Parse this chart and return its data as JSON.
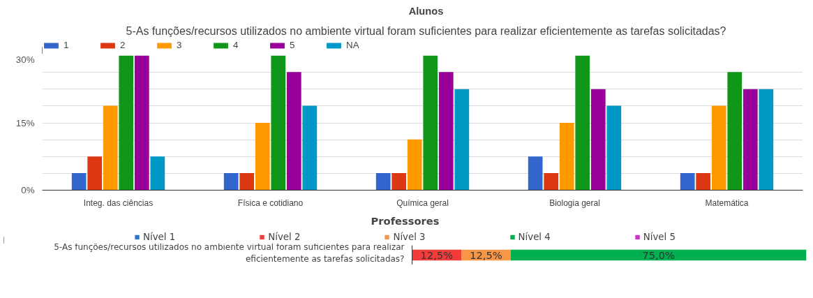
{
  "chart_data": [
    {
      "type": "bar",
      "title": "Alunos",
      "subtitle": "5-As funções/recursos utilizados no ambiente virtual foram suficientes para realizar eficientemente as tarefas solicitadas?",
      "categories": [
        "Integ. das ciências",
        "Física e cotidiano",
        "Química geral",
        "Biologia geral",
        "Matemática"
      ],
      "series": [
        {
          "name": "1",
          "color": "#3366cc",
          "values": [
            3.8,
            3.8,
            3.8,
            7.5,
            3.8
          ]
        },
        {
          "name": "2",
          "color": "#dc3912",
          "values": [
            7.5,
            3.8,
            3.8,
            3.8,
            3.8
          ]
        },
        {
          "name": "3",
          "color": "#ff9900",
          "values": [
            18.8,
            15,
            11.3,
            15,
            18.8
          ]
        },
        {
          "name": "4",
          "color": "#109618",
          "values": [
            30,
            30,
            30,
            30,
            26.3
          ]
        },
        {
          "name": "5",
          "color": "#990099",
          "values": [
            30,
            26.3,
            26.3,
            22.5,
            22.5
          ]
        },
        {
          "name": "NA",
          "color": "#0099c6",
          "values": [
            7.5,
            18.8,
            22.5,
            18.8,
            22.5
          ]
        }
      ],
      "ylim": [
        0,
        30
      ],
      "yticks": [
        {
          "value": 0,
          "label": "0%"
        },
        {
          "value": 3.75,
          "label": null
        },
        {
          "value": 7.5,
          "label": null
        },
        {
          "value": 11.25,
          "label": null
        },
        {
          "value": 15,
          "label": "15%"
        },
        {
          "value": 18.75,
          "label": null
        },
        {
          "value": 22.5,
          "label": null
        },
        {
          "value": 26.25,
          "label": null
        },
        {
          "value": 30,
          "label": "30%"
        }
      ],
      "grid": "y",
      "legend": "top left"
    },
    {
      "type": "bar",
      "orientation": "horizontal",
      "stacked": true,
      "title": "Professores",
      "categories": [
        "5-As funções/recursos utilizados no ambiente virtual foram suficientes para realizar eficientemente as tarefas solicitadas?"
      ],
      "series": [
        {
          "name": "Nível 1",
          "color": "#2e75d6",
          "values": [
            0
          ],
          "value_labels": [
            null
          ]
        },
        {
          "name": "Nível 2",
          "color": "#f23c3c",
          "values": [
            12.5
          ],
          "value_labels": [
            "12,5%"
          ]
        },
        {
          "name": "Nível 3",
          "color": "#f79646",
          "values": [
            12.5
          ],
          "value_labels": [
            "12,5%"
          ]
        },
        {
          "name": "Nível 4",
          "color": "#00b050",
          "values": [
            75
          ],
          "value_labels": [
            "75,0%"
          ]
        },
        {
          "name": "Nível 5",
          "color": "#cc33cc",
          "values": [
            0
          ],
          "value_labels": [
            null
          ]
        }
      ],
      "xlim": [
        0,
        100
      ],
      "tick_labels": "y",
      "legend": "top"
    }
  ]
}
